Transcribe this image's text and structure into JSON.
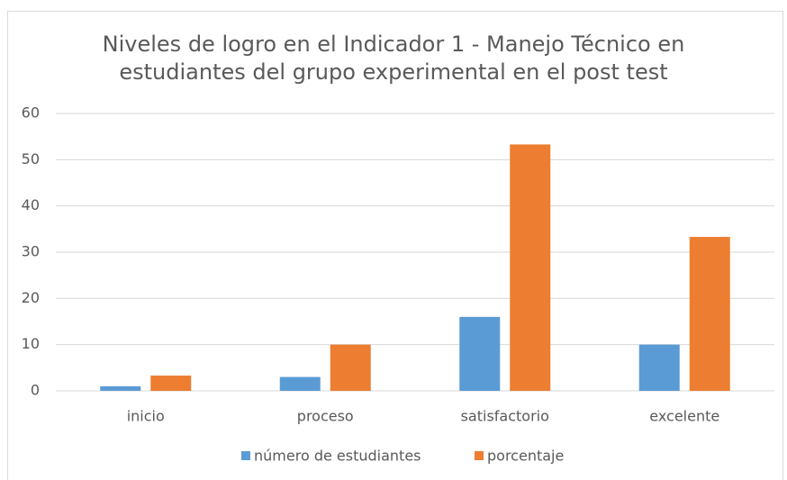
{
  "chart_data": {
    "type": "bar",
    "title": "Niveles de logro en el Indicador 1 - Manejo Técnico en estudiantes del grupo experimental en el post test",
    "categories": [
      "inicio",
      "proceso",
      "satisfactorio",
      "excelente"
    ],
    "series": [
      {
        "name": "número de estudiantes",
        "color": "#5b9bd5",
        "values": [
          1,
          3,
          16,
          10
        ]
      },
      {
        "name": "porcentaje",
        "color": "#ed7d31",
        "values": [
          3.3,
          10,
          53.3,
          33.3
        ]
      }
    ],
    "ylim": [
      0,
      60
    ],
    "yticks": [
      0,
      10,
      20,
      30,
      40,
      50,
      60
    ],
    "grid": true,
    "legend": "bottom"
  }
}
